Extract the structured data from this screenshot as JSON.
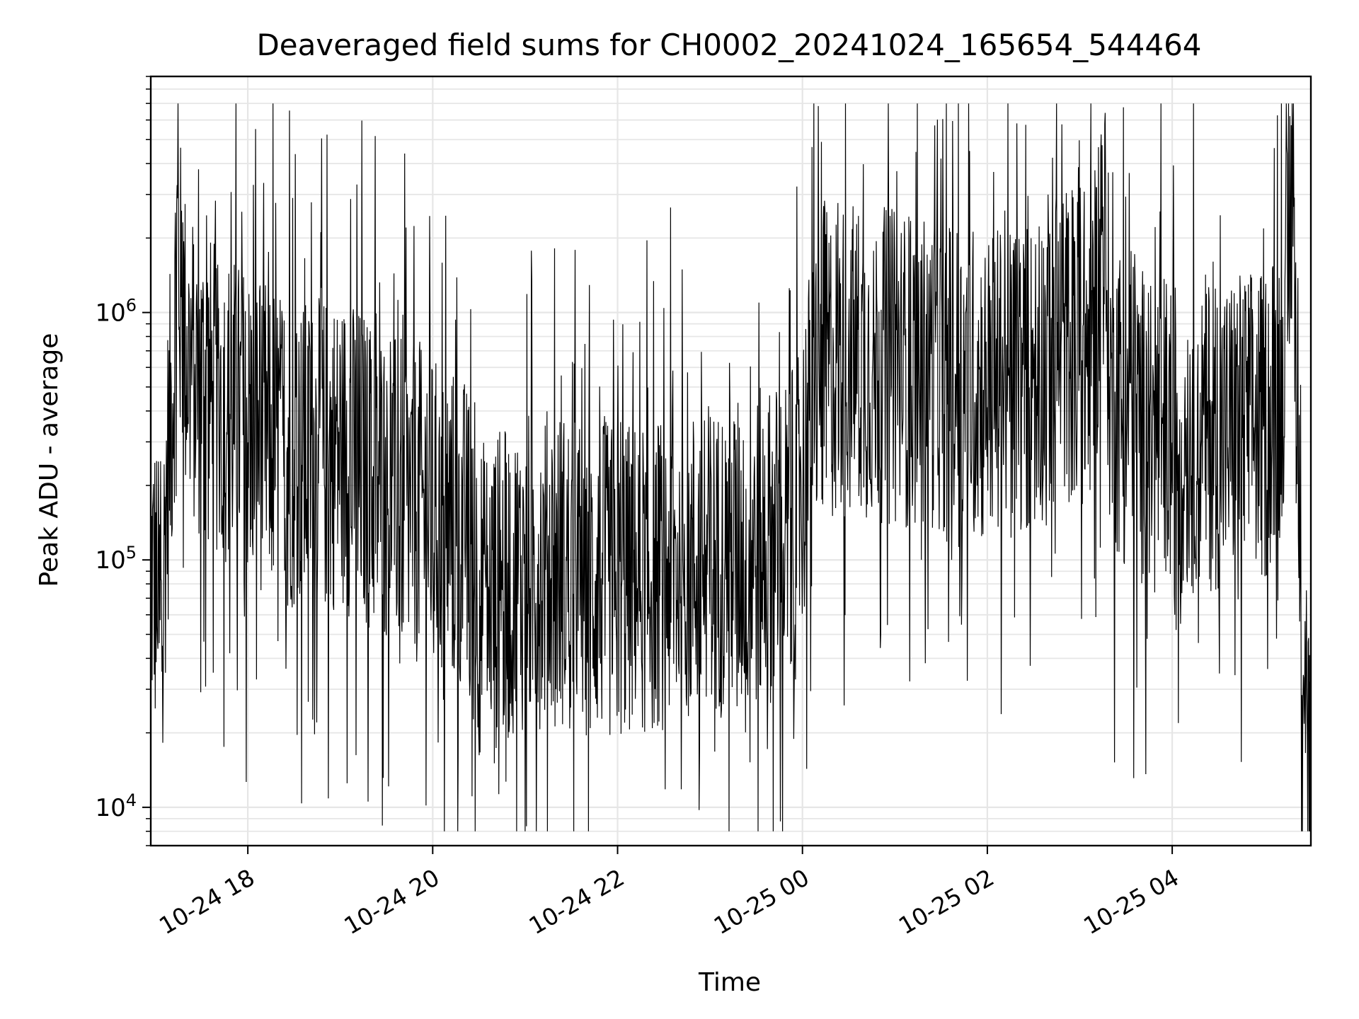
{
  "chart_data": {
    "type": "line",
    "title": "Deaveraged field sums for CH0002_20241024_165654_544464",
    "xlabel": "Time",
    "ylabel": "Peak ADU - average",
    "y_scale": "log",
    "ylim": [
      7000,
      9000000
    ],
    "xlim": [
      "2024-10-24 16:57",
      "2024-10-25 05:30"
    ],
    "grid": true,
    "legend": "none",
    "line_color": "#000000",
    "grid_color": "#e6e6e6",
    "x_ticks": [
      {
        "at": "2024-10-24 18:00",
        "label": "10-24 18"
      },
      {
        "at": "2024-10-24 20:00",
        "label": "10-24 20"
      },
      {
        "at": "2024-10-24 22:00",
        "label": "10-24 22"
      },
      {
        "at": "2024-10-25 00:00",
        "label": "10-25 00"
      },
      {
        "at": "2024-10-25 02:00",
        "label": "10-25 02"
      },
      {
        "at": "2024-10-25 04:00",
        "label": "10-25 04"
      }
    ],
    "y_ticks": [
      {
        "value": 10000,
        "base": "10",
        "exp": "4"
      },
      {
        "value": 100000,
        "base": "10",
        "exp": "5"
      },
      {
        "value": 1000000,
        "base": "10",
        "exp": "6"
      }
    ],
    "series": [
      {
        "x": [
          "2024-10-24 16:57",
          "2024-10-24 17:00",
          "2024-10-24 17:04",
          "2024-10-24 17:07",
          "2024-10-24 17:12",
          "2024-10-24 17:14",
          "2024-10-24 17:16",
          "2024-10-24 17:20",
          "2024-10-24 17:30",
          "2024-10-24 17:45",
          "2024-10-24 18:00",
          "2024-10-24 18:20",
          "2024-10-24 18:40",
          "2024-10-24 19:00",
          "2024-10-24 19:20",
          "2024-10-24 19:40",
          "2024-10-24 20:00",
          "2024-10-24 20:20",
          "2024-10-24 20:30",
          "2024-10-24 20:45",
          "2024-10-24 21:00",
          "2024-10-24 21:20",
          "2024-10-24 21:40",
          "2024-10-24 22:00",
          "2024-10-24 22:30",
          "2024-10-24 23:00",
          "2024-10-24 23:30",
          "2024-10-24 23:55",
          "2024-10-25 00:10",
          "2024-10-25 00:30",
          "2024-10-25 01:00",
          "2024-10-25 01:30",
          "2024-10-25 02:00",
          "2024-10-25 02:30",
          "2024-10-25 02:45",
          "2024-10-25 03:00",
          "2024-10-25 03:10",
          "2024-10-25 03:15",
          "2024-10-25 03:20",
          "2024-10-25 03:40",
          "2024-10-25 04:00",
          "2024-10-25 04:30",
          "2024-10-25 05:00",
          "2024-10-25 05:10",
          "2024-10-25 05:15",
          "2024-10-25 05:18",
          "2024-10-25 05:22",
          "2024-10-25 05:26",
          "2024-10-25 05:30"
        ],
        "y": [
          90000,
          80000,
          45000,
          180000,
          600000,
          2000000,
          1200000,
          700000,
          500000,
          420000,
          350000,
          300000,
          250000,
          280000,
          220000,
          180000,
          150000,
          130000,
          70000,
          75000,
          90000,
          95000,
          85000,
          80000,
          90000,
          100000,
          110000,
          130000,
          600000,
          650000,
          600000,
          580000,
          500000,
          550000,
          800000,
          700000,
          800000,
          3000000,
          500000,
          350000,
          320000,
          330000,
          350000,
          500000,
          1200000,
          4000000,
          250000,
          40000,
          10000
        ]
      }
    ]
  }
}
